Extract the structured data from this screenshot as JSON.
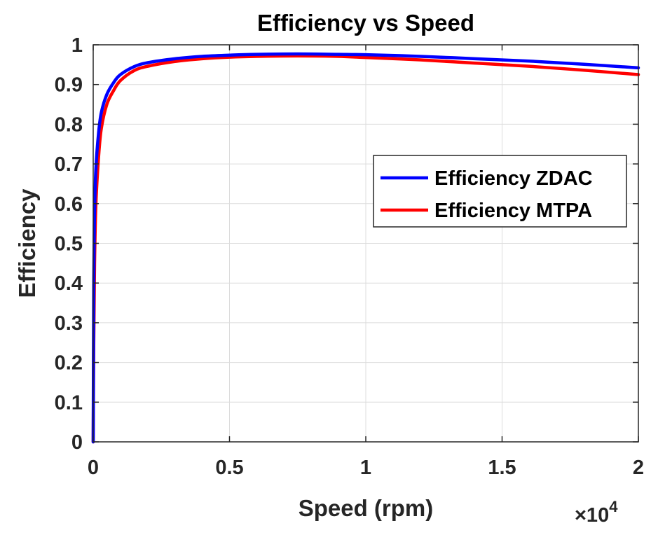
{
  "chart_data": {
    "type": "line",
    "title": "Efficiency vs Speed",
    "xlabel": "Speed (rpm)",
    "ylabel": "Efficiency",
    "x_exponent_label": "×10",
    "x_exponent_power": "4",
    "xlim": [
      0,
      2
    ],
    "ylim": [
      0,
      1
    ],
    "xticks": [
      0,
      0.5,
      1,
      1.5,
      2
    ],
    "xtick_labels": [
      "0",
      "0.5",
      "1",
      "1.5",
      "2"
    ],
    "yticks": [
      0,
      0.1,
      0.2,
      0.3,
      0.4,
      0.5,
      0.6,
      0.7,
      0.8,
      0.9,
      1
    ],
    "ytick_labels": [
      "0",
      "0.1",
      "0.2",
      "0.3",
      "0.4",
      "0.5",
      "0.6",
      "0.7",
      "0.8",
      "0.9",
      "1"
    ],
    "grid": true,
    "legend_position": "right",
    "series": [
      {
        "name": "Efficiency ZDAC",
        "color": "#0000ff",
        "x": [
          0,
          0.002,
          0.005,
          0.01,
          0.02,
          0.03,
          0.05,
          0.075,
          0.1,
          0.15,
          0.2,
          0.3,
          0.4,
          0.5,
          0.6,
          0.75,
          0.9,
          1.0,
          1.2,
          1.4,
          1.6,
          1.8,
          2.0
        ],
        "values": [
          0,
          0.4,
          0.58,
          0.69,
          0.78,
          0.83,
          0.875,
          0.905,
          0.925,
          0.945,
          0.955,
          0.965,
          0.971,
          0.974,
          0.976,
          0.977,
          0.976,
          0.975,
          0.971,
          0.965,
          0.959,
          0.951,
          0.942
        ]
      },
      {
        "name": "Efficiency MTPA",
        "color": "#ff0000",
        "x": [
          0,
          0.002,
          0.005,
          0.01,
          0.02,
          0.03,
          0.05,
          0.075,
          0.1,
          0.15,
          0.2,
          0.3,
          0.4,
          0.5,
          0.6,
          0.75,
          0.9,
          1.0,
          1.2,
          1.4,
          1.6,
          1.8,
          2.0
        ],
        "values": [
          0,
          0.25,
          0.45,
          0.6,
          0.72,
          0.79,
          0.85,
          0.885,
          0.91,
          0.935,
          0.946,
          0.958,
          0.965,
          0.969,
          0.971,
          0.972,
          0.971,
          0.968,
          0.962,
          0.954,
          0.946,
          0.936,
          0.925
        ]
      }
    ]
  }
}
